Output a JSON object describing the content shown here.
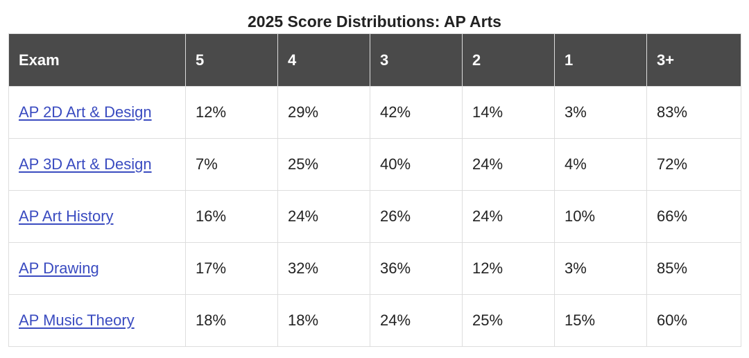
{
  "title": "2025 Score Distributions: AP Arts",
  "table": {
    "headers": [
      "Exam",
      "5",
      "4",
      "3",
      "2",
      "1",
      "3+"
    ],
    "rows": [
      {
        "exam": "AP 2D Art & Design",
        "cells": [
          "12%",
          "29%",
          "42%",
          "14%",
          "3%",
          "83%"
        ]
      },
      {
        "exam": "AP 3D Art & Design",
        "cells": [
          "7%",
          "25%",
          "40%",
          "24%",
          "4%",
          "72%"
        ]
      },
      {
        "exam": "AP Art History",
        "cells": [
          "16%",
          "24%",
          "26%",
          "24%",
          "10%",
          "66%"
        ]
      },
      {
        "exam": "AP Drawing",
        "cells": [
          "17%",
          "32%",
          "36%",
          "12%",
          "3%",
          "85%"
        ]
      },
      {
        "exam": "AP Music Theory",
        "cells": [
          "18%",
          "18%",
          "24%",
          "25%",
          "15%",
          "60%"
        ]
      }
    ]
  },
  "colors": {
    "header_bg": "#4a4a4a",
    "header_text": "#ffffff",
    "link": "#3a4bc0",
    "border": "#dddddd"
  }
}
